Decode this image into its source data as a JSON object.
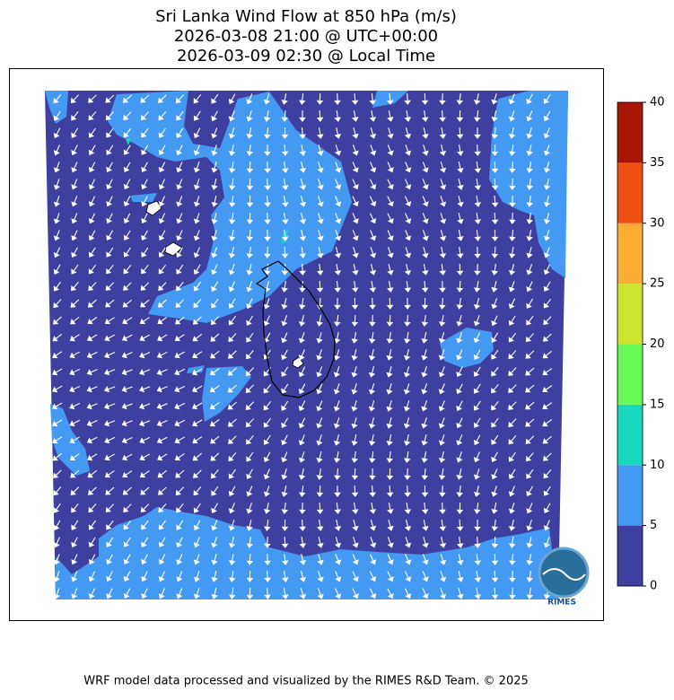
{
  "title": [
    "Sri Lanka Wind Flow at 850 hPa (m/s)",
    "2026-03-08 21:00 @ UTC+00:00",
    "2026-03-09 02:30 @ Local Time"
  ],
  "colorbar": {
    "levels": [
      0,
      5,
      10,
      15,
      20,
      25,
      30,
      35,
      40
    ],
    "colors": [
      "#3e3f9e",
      "#4499f2",
      "#18d9bf",
      "#69fa5a",
      "#cde52f",
      "#fbad34",
      "#ef5114",
      "#a81606"
    ]
  },
  "logo": "RIMES",
  "footer": "WRF model data processed and visualized by the RIMES R&D Team. © 2025"
}
